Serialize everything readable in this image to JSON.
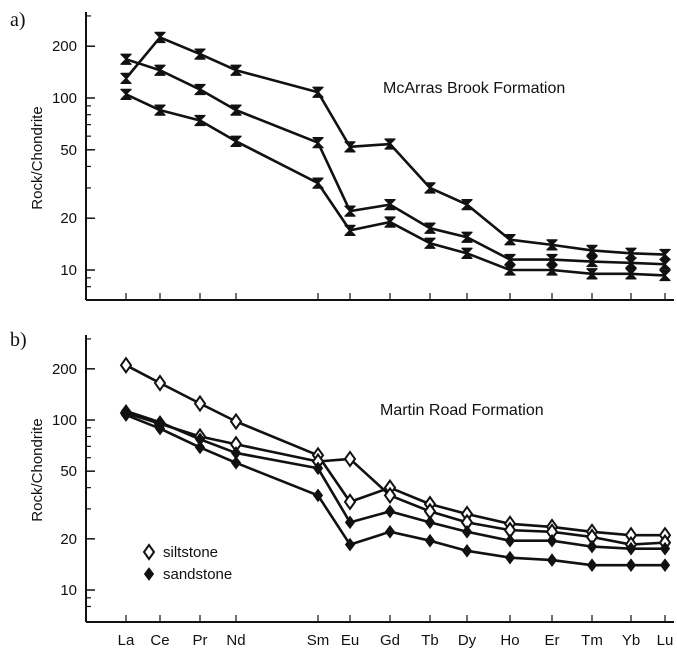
{
  "chart_data": [
    {
      "type": "line",
      "panel_label": "a)",
      "title": "McArras Brook Formation",
      "xlabel": "",
      "ylabel": "Rock/Chondrite",
      "yscale": "log",
      "ylim": [
        7,
        350
      ],
      "yticks": [
        10,
        20,
        50,
        100,
        200
      ],
      "categories": [
        "La",
        "Ce",
        "Pr",
        "Nd",
        "Sm",
        "Eu",
        "Gd",
        "Tb",
        "Dy",
        "Ho",
        "Er",
        "Tm",
        "Yb",
        "Lu"
      ],
      "marker": "hourglass",
      "series": [
        {
          "values": [
            130,
            225,
            180,
            145,
            108,
            52,
            54,
            30,
            24,
            15,
            14,
            13,
            12.5,
            12.3
          ]
        },
        {
          "values": [
            168,
            145,
            112,
            85,
            55,
            22,
            24,
            17.5,
            15.5,
            11.5,
            11.5,
            11.2,
            11,
            10.8
          ]
        },
        {
          "values": [
            105,
            85,
            74,
            56,
            32,
            17,
            19,
            14.3,
            12.5,
            10,
            10,
            9.5,
            9.5,
            9.3
          ]
        }
      ]
    },
    {
      "type": "line",
      "panel_label": "b)",
      "title": "Martin Road Formation",
      "xlabel": "",
      "ylabel": "Rock/Chondrite",
      "yscale": "log",
      "ylim": [
        7,
        350
      ],
      "yticks": [
        10,
        20,
        50,
        100,
        200
      ],
      "categories": [
        "La",
        "Ce",
        "Pr",
        "Nd",
        "Sm",
        "Eu",
        "Gd",
        "Tb",
        "Dy",
        "Ho",
        "Er",
        "Tm",
        "Yb",
        "Lu"
      ],
      "legend": [
        {
          "label": "siltstone",
          "marker": "open-diamond"
        },
        {
          "label": "sandstone",
          "marker": "filled-diamond"
        }
      ],
      "series": [
        {
          "name": "siltstone",
          "marker": "open-diamond",
          "values": [
            210,
            165,
            125,
            98,
            62,
            33,
            40,
            32,
            28,
            24.5,
            23.5,
            22,
            21,
            21
          ]
        },
        {
          "name": "siltstone",
          "marker": "open-diamond",
          "values": [
            110,
            95,
            80,
            72,
            57,
            59,
            36,
            29,
            25,
            22.5,
            22,
            20.5,
            18.5,
            19
          ]
        },
        {
          "name": "sandstone",
          "marker": "filled-diamond",
          "values": [
            113,
            97,
            77,
            64,
            52,
            25,
            29,
            25,
            22,
            19.5,
            19.5,
            18,
            17.5,
            17.5
          ]
        },
        {
          "name": "sandstone",
          "marker": "filled-diamond",
          "values": [
            107,
            89,
            69,
            56,
            36,
            18.5,
            22,
            19.5,
            17,
            15.5,
            15,
            14,
            14,
            14
          ]
        }
      ]
    }
  ]
}
